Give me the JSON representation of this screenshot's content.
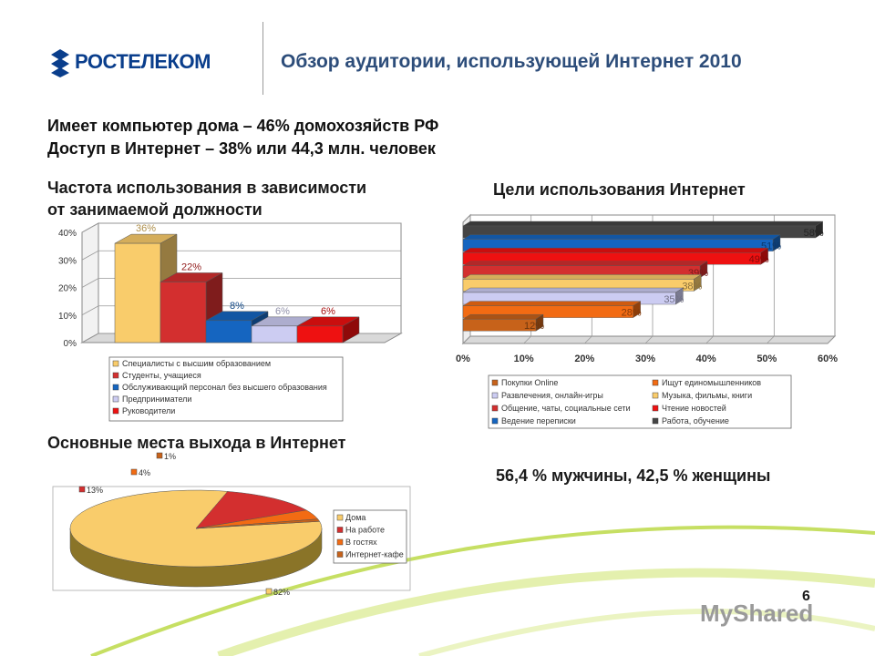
{
  "header": {
    "logo_text": "РОСТЕЛЕКОМ",
    "title": "Обзор аудитории, использующей Интернет 2010"
  },
  "facts": {
    "line1": "Имеет компьютер дома – 46% домохозяйств РФ",
    "line2": "Доступ в Интернет – 38% или 44,3 млн. человек"
  },
  "sections": {
    "frequency_title_1": "Частота использования в зависимости",
    "frequency_title_2": "от занимаемой должности",
    "goals_title": "Цели использования Интернет",
    "places_title": "Основные места выхода в Интернет",
    "gender": "56,4 % мужчины, 42,5 % женщины"
  },
  "page_number": "6",
  "watermark": "MyShared",
  "chart_data": [
    {
      "type": "bar",
      "title": "Частота использования в зависимости от занимаемой должности",
      "ylim": [
        0,
        40
      ],
      "yticks": [
        "0%",
        "10%",
        "20%",
        "30%",
        "40%"
      ],
      "grid": true,
      "legend": "bottom",
      "series": [
        {
          "name": "Специалисты с высшим образованием",
          "value": 36,
          "label": "36%",
          "color": "#f9cc6b"
        },
        {
          "name": "Студенты, учащиеся",
          "value": 22,
          "label": "22%",
          "color": "#d32f2f"
        },
        {
          "name": "Обслуживающий персонал без высшего образования",
          "value": 8,
          "label": "8%",
          "color": "#1565c0"
        },
        {
          "name": "Предприниматели",
          "value": 6,
          "label": "6%",
          "color": "#ccccf2"
        },
        {
          "name": "Руководители",
          "value": 6,
          "label": "6%",
          "color": "#ee1111"
        }
      ]
    },
    {
      "type": "bar",
      "orientation": "horizontal",
      "title": "Цели использования Интернет",
      "xlim": [
        0,
        60
      ],
      "xticks": [
        "0%",
        "10%",
        "20%",
        "30%",
        "40%",
        "50%",
        "60%"
      ],
      "grid": true,
      "legend": "bottom",
      "series": [
        {
          "name": "Работа, обучение",
          "value": 58,
          "label": "58%",
          "color": "#444444"
        },
        {
          "name": "Ведение переписки",
          "value": 51,
          "label": "51%",
          "color": "#1565c0"
        },
        {
          "name": "Чтение новостей",
          "value": 49,
          "label": "49%",
          "color": "#ee1111"
        },
        {
          "name": "Общение, чаты, социальные сети",
          "value": 39,
          "label": "39%",
          "color": "#d32f2f"
        },
        {
          "name": "Музыка, фильмы, книги",
          "value": 38,
          "label": "38%",
          "color": "#f9cc6b"
        },
        {
          "name": "Развлечения, онлайн-игры",
          "value": 35,
          "label": "35%",
          "color": "#ccccf2"
        },
        {
          "name": "Ищут единомышленников",
          "value": 28,
          "label": "28%",
          "color": "#f26b13"
        },
        {
          "name": "Покупки Online",
          "value": 12,
          "label": "12%",
          "color": "#c7621a"
        }
      ],
      "legend_order": [
        "Покупки Online",
        "Ищут единомышленников",
        "Развлечения, онлайн-игры",
        "Музыка, фильмы, книги",
        "Общение, чаты, социальные сети",
        "Чтение новостей",
        "Ведение переписки",
        "Работа, обучение"
      ]
    },
    {
      "type": "pie",
      "title": "Основные места выхода в Интернет",
      "legend": "right",
      "slices": [
        {
          "name": "Дома",
          "value": 82,
          "label": "82%",
          "color": "#f9cc6b"
        },
        {
          "name": "На работе",
          "value": 13,
          "label": "13%",
          "color": "#d32f2f"
        },
        {
          "name": "В гостях",
          "value": 4,
          "label": "4%",
          "color": "#f26b13"
        },
        {
          "name": "Интернет-кафе",
          "value": 1,
          "label": "1%",
          "color": "#c7621a"
        }
      ]
    }
  ]
}
